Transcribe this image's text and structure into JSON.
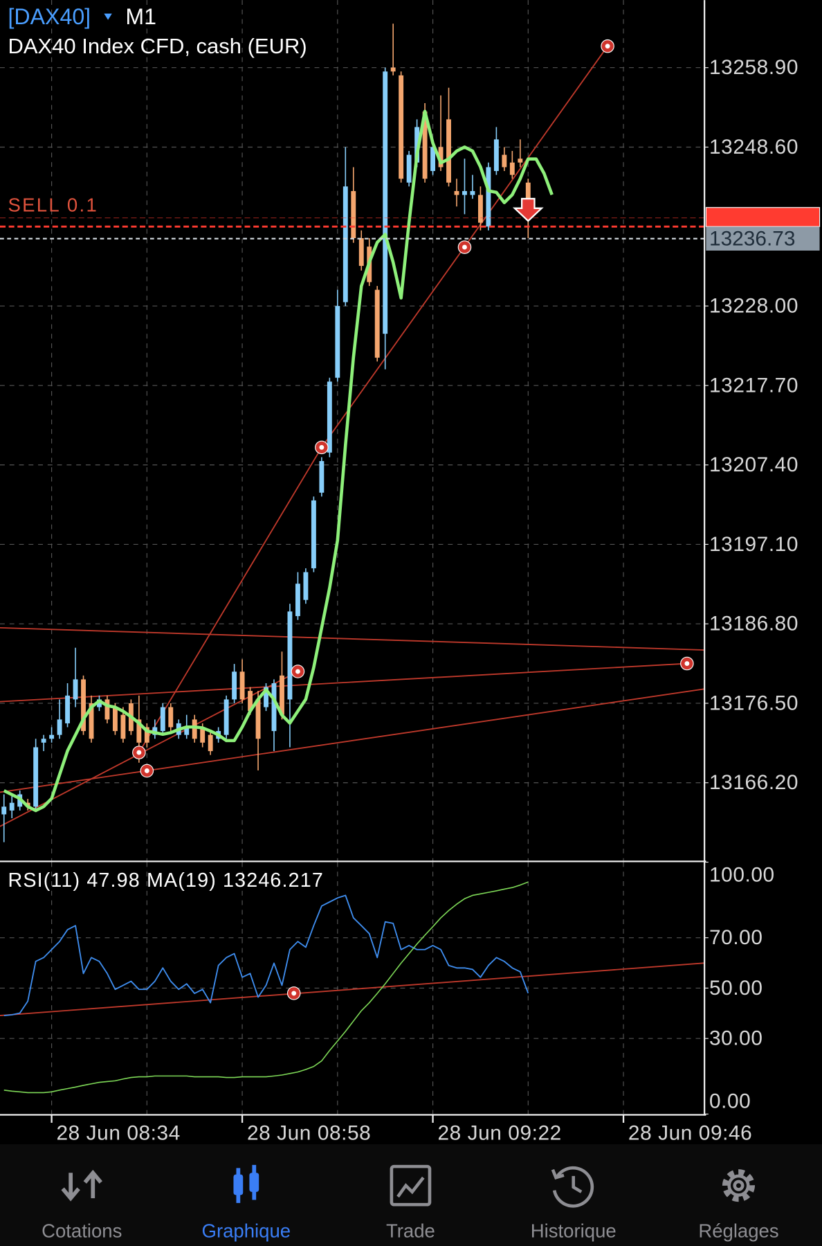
{
  "header": {
    "symbol": "[DAX40]",
    "timeframe": "M1",
    "description": "DAX40 Index CFD, cash (EUR)",
    "order_label": "SELL 0.1"
  },
  "chart_data": [
    {
      "type": "candlestick",
      "up_color": "#87cefa",
      "down_color": "#f4a66e",
      "grid": true,
      "ylim": [
        13156.11,
        13267.66
      ],
      "yticks": [
        {
          "value": 13258.9,
          "label": "13258.90"
        },
        {
          "value": 13248.6,
          "label": "13248.60"
        },
        {
          "value": 13228.0,
          "label": "13228.00"
        },
        {
          "value": 13217.7,
          "label": "13217.70"
        },
        {
          "value": 13207.4,
          "label": "13207.40"
        },
        {
          "value": 13197.1,
          "label": "13197.10"
        },
        {
          "value": 13186.8,
          "label": "13186.80"
        },
        {
          "value": 13176.5,
          "label": "13176.50"
        },
        {
          "value": 13166.2,
          "label": "13166.20"
        }
      ],
      "xticks": [
        "28 Jun 08:34",
        "28 Jun 08:58",
        "28 Jun 09:22",
        "28 Jun 09:46"
      ],
      "order_price": 13238.3,
      "order_color": "#ff3b30",
      "bid_price": 13236.73,
      "bid_color": "#8d9aa6",
      "candles": {
        "open": [
          13162.1,
          13162.6,
          13163.1,
          13163.6,
          13163.1,
          13171.4,
          13171.9,
          13172.4,
          13173.9,
          13177.0,
          13179.6,
          13176.5,
          13176.0,
          13177.0,
          13176.0,
          13175.0,
          13176.5,
          13174.4,
          13173.4,
          13172.4,
          13172.9,
          13176.0,
          13172.4,
          13172.4,
          13174.4,
          13173.4,
          13172.4,
          13171.9,
          13172.4,
          13177.0,
          13180.6,
          13178.1,
          13177.0,
          13176.0,
          13172.9,
          13180.1,
          13177.0,
          13187.8,
          13189.9,
          13194.0,
          13203.8,
          13209.0,
          13218.7,
          13228.5,
          13242.9,
          13236.8,
          13235.7,
          13230.1,
          13224.4,
          13258.9,
          13257.9,
          13244.0,
          13246.6,
          13253.2,
          13245.5,
          13248.6,
          13252.2,
          13242.9,
          13242.4,
          13242.4,
          13242.4,
          13238.3,
          13245.5,
          13247.6,
          13246.6,
          13247.1,
          13244.0
        ],
        "high": [
          13164.7,
          13164.7,
          13165.2,
          13164.1,
          13171.9,
          13172.4,
          13173.4,
          13177.0,
          13179.1,
          13183.7,
          13180.1,
          13177.5,
          13177.5,
          13177.5,
          13176.5,
          13176.0,
          13177.0,
          13177.5,
          13173.9,
          13174.4,
          13176.5,
          13176.5,
          13174.4,
          13175.0,
          13175.0,
          13173.9,
          13172.9,
          13173.4,
          13177.5,
          13181.6,
          13182.2,
          13178.6,
          13178.1,
          13179.1,
          13179.6,
          13183.2,
          13189.4,
          13193.5,
          13194.0,
          13203.3,
          13208.4,
          13218.7,
          13230.1,
          13248.6,
          13246.0,
          13237.8,
          13236.8,
          13230.6,
          13258.9,
          13264.6,
          13258.4,
          13248.1,
          13252.2,
          13254.3,
          13249.1,
          13255.3,
          13256.3,
          13244.5,
          13247.1,
          13245.0,
          13243.5,
          13246.6,
          13251.2,
          13248.6,
          13248.1,
          13249.6,
          13244.5
        ],
        "low": [
          13158.5,
          13161.6,
          13162.6,
          13162.6,
          13162.6,
          13170.3,
          13171.4,
          13171.9,
          13173.4,
          13176.0,
          13172.4,
          13171.4,
          13175.5,
          13173.9,
          13172.4,
          13171.4,
          13172.4,
          13168.8,
          13170.8,
          13171.9,
          13172.4,
          13172.9,
          13171.9,
          13171.9,
          13171.4,
          13170.8,
          13169.8,
          13171.4,
          13171.9,
          13176.5,
          13176.5,
          13175.0,
          13167.8,
          13175.5,
          13170.3,
          13174.4,
          13170.8,
          13187.3,
          13189.4,
          13193.5,
          13203.3,
          13208.4,
          13218.2,
          13228.0,
          13236.2,
          13232.6,
          13230.6,
          13220.8,
          13219.8,
          13257.9,
          13244.0,
          13243.5,
          13246.0,
          13244.0,
          13245.0,
          13245.5,
          13243.5,
          13240.9,
          13239.9,
          13241.9,
          13237.8,
          13237.8,
          13245.0,
          13245.5,
          13244.5,
          13246.0,
          13236.8
        ],
        "close": [
          13163.1,
          13163.6,
          13164.7,
          13163.1,
          13170.8,
          13171.9,
          13172.4,
          13174.4,
          13177.5,
          13179.6,
          13172.9,
          13171.9,
          13177.0,
          13174.4,
          13172.9,
          13171.9,
          13172.9,
          13171.4,
          13171.4,
          13173.4,
          13176.0,
          13173.4,
          13173.9,
          13173.4,
          13171.9,
          13171.4,
          13170.3,
          13172.9,
          13177.0,
          13180.6,
          13177.0,
          13175.5,
          13171.9,
          13178.6,
          13179.1,
          13175.0,
          13188.4,
          13192.0,
          13193.5,
          13202.8,
          13207.9,
          13218.2,
          13228.0,
          13243.5,
          13236.8,
          13233.2,
          13231.1,
          13221.3,
          13258.4,
          13258.4,
          13244.5,
          13247.6,
          13251.2,
          13244.5,
          13248.6,
          13246.0,
          13244.0,
          13242.4,
          13242.9,
          13242.9,
          13238.8,
          13246.0,
          13249.6,
          13246.0,
          13245.0,
          13246.6,
          13239.9
        ]
      },
      "overlay": {
        "color": "#8ef07a",
        "values": [
          13165.17,
          13164.66,
          13164.15,
          13163.11,
          13162.6,
          13163.11,
          13164.15,
          13167.24,
          13170.33,
          13172.39,
          13174.44,
          13175.99,
          13176.81,
          13176.2,
          13175.99,
          13175.47,
          13174.75,
          13173.93,
          13172.9,
          13172.69,
          13172.49,
          13172.69,
          13173.11,
          13173.42,
          13173.42,
          13173.31,
          13172.9,
          13172.39,
          13171.66,
          13171.66,
          13173.42,
          13175.47,
          13177.02,
          13178.26,
          13177.02,
          13174.96,
          13173.93,
          13175.47,
          13177.02,
          13181.14,
          13186.29,
          13191.44,
          13197.62,
          13209.98,
          13221.31,
          13230.58,
          13233.67,
          13236.25,
          13237.28,
          13233.67,
          13229.04,
          13238.82,
          13247.58,
          13253.24,
          13249.12,
          13246.55,
          13247.06,
          13248.09,
          13248.6,
          13248.09,
          13246.03,
          13242.94,
          13242.73,
          13241.4,
          13242.42,
          13244.49,
          13247.06,
          13247.06,
          13245.21,
          13242.42
        ]
      }
    },
    {
      "type": "line",
      "title": "RSI(11) 47.98 MA(19) 13246.217",
      "grid": true,
      "ylim": [
        0,
        100
      ],
      "yticks": [
        {
          "value": 100,
          "label": "100.00"
        },
        {
          "value": 70,
          "label": "70.00"
        },
        {
          "value": 50,
          "label": "50.00"
        },
        {
          "value": 30,
          "label": "30.00"
        },
        {
          "value": 0,
          "label": "0.00"
        }
      ],
      "series": [
        {
          "color": "#3f8ef0",
          "values": [
            39.1,
            39.4,
            40.1,
            44.8,
            60.6,
            62.1,
            65.3,
            68.5,
            73.2,
            74.8,
            55.8,
            62.1,
            60.6,
            55.8,
            49.5,
            51.1,
            52.7,
            49.5,
            49.5,
            52.7,
            58.0,
            52.7,
            49.5,
            51.7,
            47.9,
            49.5,
            44.2,
            59.0,
            62.1,
            63.7,
            54.3,
            55.8,
            46.4,
            51.1,
            59.9,
            51.1,
            65.3,
            68.5,
            66.2,
            74.8,
            82.6,
            84.2,
            85.8,
            86.8,
            77.9,
            74.8,
            71.6,
            62.1,
            76.3,
            75.7,
            65.3,
            66.9,
            65.3,
            65.3,
            66.9,
            65.3,
            59.0,
            58.0,
            58.0,
            57.4,
            54.3,
            59.0,
            62.1,
            60.6,
            58.0,
            56.5,
            47.98
          ]
        },
        {
          "color": "#7ed957",
          "values": [
            9.5,
            9.1,
            8.8,
            8.5,
            8.5,
            8.5,
            8.8,
            9.5,
            10.1,
            10.7,
            11.4,
            12.0,
            12.6,
            12.9,
            13.2,
            13.9,
            14.5,
            14.8,
            14.8,
            15.1,
            15.1,
            15.1,
            15.1,
            15.1,
            14.8,
            14.8,
            14.8,
            14.8,
            14.5,
            14.5,
            14.8,
            14.8,
            14.8,
            14.8,
            15.1,
            15.5,
            16.1,
            16.7,
            17.7,
            18.9,
            21.1,
            25.2,
            29.0,
            32.8,
            36.9,
            41.0,
            44.2,
            47.9,
            51.7,
            55.8,
            59.9,
            63.7,
            67.5,
            71.0,
            74.4,
            77.9,
            80.8,
            83.3,
            85.5,
            86.8,
            87.4,
            88.0,
            88.6,
            89.3,
            89.9,
            90.9,
            92.1
          ]
        }
      ]
    }
  ],
  "nav": {
    "items": [
      "Cotations",
      "Graphique",
      "Trade",
      "Historique",
      "Réglages"
    ],
    "active": 1,
    "color": "#8e8e93",
    "active_color": "#3a7ef6"
  }
}
